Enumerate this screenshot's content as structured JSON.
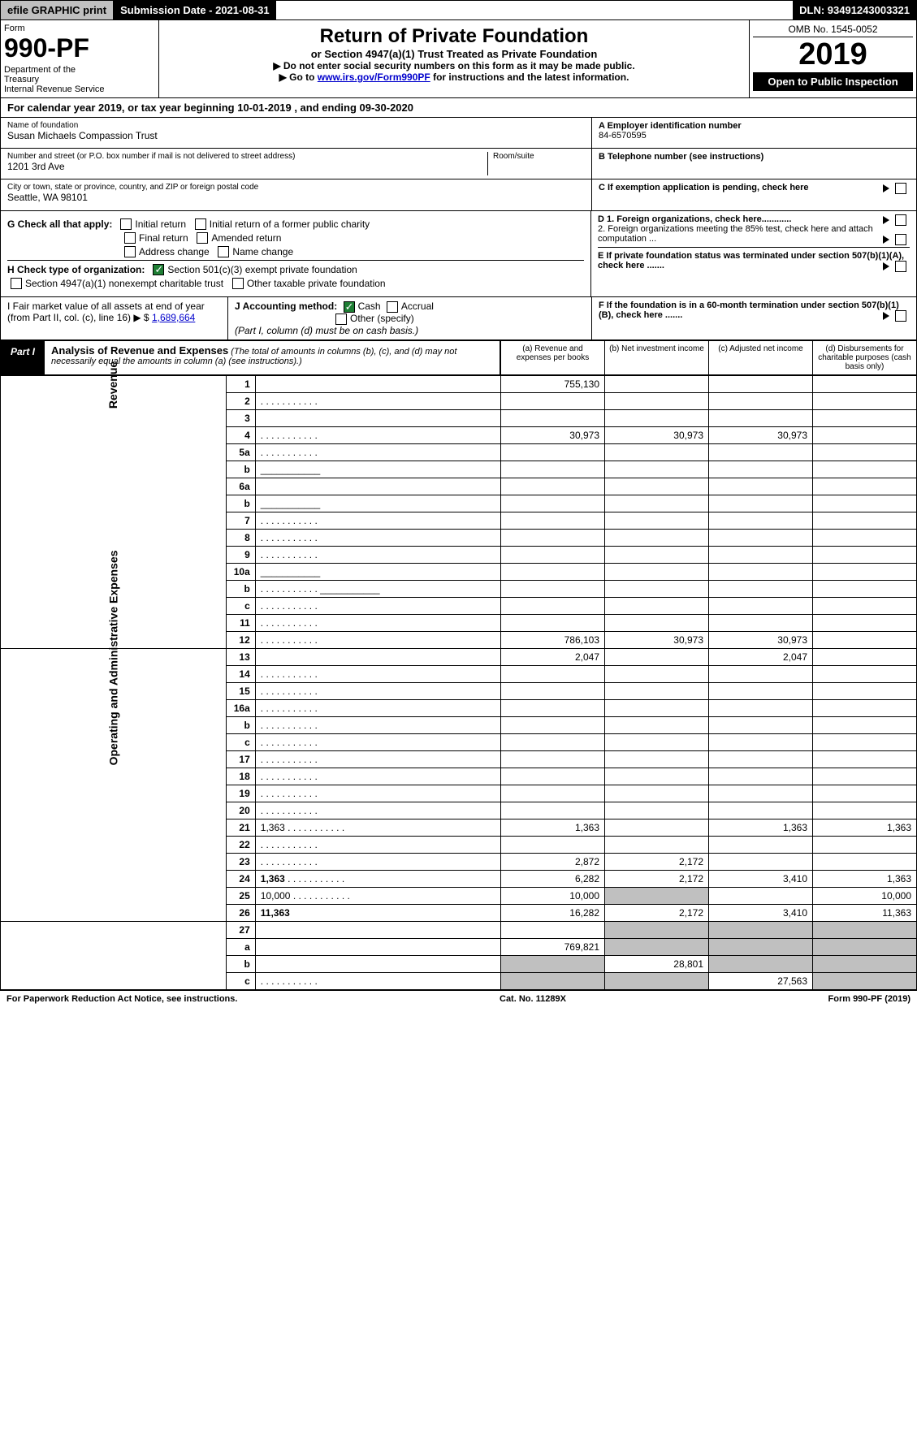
{
  "header": {
    "efile": "efile GRAPHIC print",
    "sub_date_lbl": "Submission Date - 2021-08-31",
    "dln": "DLN: 93491243003321"
  },
  "top": {
    "form_lbl": "Form",
    "form_no": "990-PF",
    "dept": "Department of the Treasury\nInternal Revenue Service",
    "title": "Return of Private Foundation",
    "subtitle": "or Section 4947(a)(1) Trust Treated as Private Foundation",
    "inst1": "▶ Do not enter social security numbers on this form as it may be made public.",
    "inst2_pre": "▶ Go to ",
    "inst2_link": "www.irs.gov/Form990PF",
    "inst2_post": " for instructions and the latest information.",
    "omb": "OMB No. 1545-0052",
    "year": "2019",
    "open": "Open to Public Inspection"
  },
  "cal": "For calendar year 2019, or tax year beginning 10-01-2019               , and ending 09-30-2020",
  "info": {
    "name_lbl": "Name of foundation",
    "name_val": "Susan Michaels Compassion Trust",
    "addr_lbl": "Number and street (or P.O. box number if mail is not delivered to street address)",
    "addr_val": "1201 3rd Ave",
    "room_lbl": "Room/suite",
    "city_lbl": "City or town, state or province, country, and ZIP or foreign postal code",
    "city_val": "Seattle, WA  98101",
    "a_lbl": "A Employer identification number",
    "a_val": "84-6570595",
    "b_lbl": "B Telephone number (see instructions)",
    "c_lbl": "C If exemption application is pending, check here",
    "d1": "D 1. Foreign organizations, check here............",
    "d2": "2. Foreign organizations meeting the 85% test, check here and attach computation ...",
    "e": "E If private foundation status was terminated under section 507(b)(1)(A), check here .......",
    "f": "F If the foundation is in a 60-month termination under section 507(b)(1)(B), check here .......",
    "g": "G Check all that apply:",
    "g_opts": [
      "Initial return",
      "Initial return of a former public charity",
      "Final return",
      "Amended return",
      "Address change",
      "Name change"
    ],
    "h": "H Check type of organization:",
    "h1": "Section 501(c)(3) exempt private foundation",
    "h2": "Section 4947(a)(1) nonexempt charitable trust",
    "h3": "Other taxable private foundation",
    "i": "I Fair market value of all assets at end of year (from Part II, col. (c), line 16) ▶ $",
    "i_val": "1,689,664",
    "j": "J Accounting method:",
    "j_cash": "Cash",
    "j_acc": "Accrual",
    "j_other": "Other (specify)",
    "j_note": "(Part I, column (d) must be on cash basis.)"
  },
  "part1": {
    "tag": "Part I",
    "title": "Analysis of Revenue and Expenses",
    "note": "(The total of amounts in columns (b), (c), and (d) may not necessarily equal the amounts in column (a) (see instructions).)",
    "cols": {
      "a": "(a) Revenue and expenses per books",
      "b": "(b) Net investment income",
      "c": "(c) Adjusted net income",
      "d": "(d) Disbursements for charitable purposes (cash basis only)"
    }
  },
  "sections": {
    "revenue": "Revenue",
    "expenses": "Operating and Administrative Expenses"
  },
  "rows": [
    {
      "n": "1",
      "d": "",
      "a": "755,130",
      "b": "",
      "c": ""
    },
    {
      "n": "2",
      "d": "",
      "a": "",
      "b": "",
      "c": "",
      "dots": true,
      "bold_not": true
    },
    {
      "n": "3",
      "d": "",
      "a": "",
      "b": "",
      "c": ""
    },
    {
      "n": "4",
      "d": "",
      "a": "30,973",
      "b": "30,973",
      "c": "30,973",
      "dots": true
    },
    {
      "n": "5a",
      "d": "",
      "a": "",
      "b": "",
      "c": "",
      "dots": true
    },
    {
      "n": "b",
      "d": "",
      "a": "",
      "b": "",
      "c": "",
      "line": true
    },
    {
      "n": "6a",
      "d": "",
      "a": "",
      "b": "",
      "c": ""
    },
    {
      "n": "b",
      "d": "",
      "a": "",
      "b": "",
      "c": "",
      "line": true
    },
    {
      "n": "7",
      "d": "",
      "a": "",
      "b": "",
      "c": "",
      "dots": true
    },
    {
      "n": "8",
      "d": "",
      "a": "",
      "b": "",
      "c": "",
      "dots": true
    },
    {
      "n": "9",
      "d": "",
      "a": "",
      "b": "",
      "c": "",
      "dots": true
    },
    {
      "n": "10a",
      "d": "",
      "a": "",
      "b": "",
      "c": "",
      "line": true
    },
    {
      "n": "b",
      "d": "",
      "a": "",
      "b": "",
      "c": "",
      "dots": true,
      "line": true
    },
    {
      "n": "c",
      "d": "",
      "a": "",
      "b": "",
      "c": "",
      "dots": true
    },
    {
      "n": "11",
      "d": "",
      "a": "",
      "b": "",
      "c": "",
      "dots": true
    },
    {
      "n": "12",
      "d": "",
      "a": "786,103",
      "b": "30,973",
      "c": "30,973",
      "bold": true,
      "dots": true
    }
  ],
  "rows2": [
    {
      "n": "13",
      "d": "",
      "a": "2,047",
      "b": "",
      "c": "2,047"
    },
    {
      "n": "14",
      "d": "",
      "a": "",
      "b": "",
      "c": "",
      "dots": true
    },
    {
      "n": "15",
      "d": "",
      "a": "",
      "b": "",
      "c": "",
      "dots": true
    },
    {
      "n": "16a",
      "d": "",
      "a": "",
      "b": "",
      "c": "",
      "dots": true
    },
    {
      "n": "b",
      "d": "",
      "a": "",
      "b": "",
      "c": "",
      "dots": true
    },
    {
      "n": "c",
      "d": "",
      "a": "",
      "b": "",
      "c": "",
      "dots": true
    },
    {
      "n": "17",
      "d": "",
      "a": "",
      "b": "",
      "c": "",
      "dots": true
    },
    {
      "n": "18",
      "d": "",
      "a": "",
      "b": "",
      "c": "",
      "dots": true
    },
    {
      "n": "19",
      "d": "",
      "a": "",
      "b": "",
      "c": "",
      "dots": true
    },
    {
      "n": "20",
      "d": "",
      "a": "",
      "b": "",
      "c": "",
      "dots": true
    },
    {
      "n": "21",
      "d": "1,363",
      "a": "1,363",
      "b": "",
      "c": "1,363",
      "dots": true
    },
    {
      "n": "22",
      "d": "",
      "a": "",
      "b": "",
      "c": "",
      "dots": true
    },
    {
      "n": "23",
      "d": "",
      "a": "2,872",
      "b": "2,172",
      "c": "",
      "dots": true
    },
    {
      "n": "24",
      "d": "1,363",
      "a": "6,282",
      "b": "2,172",
      "c": "3,410",
      "bold": true,
      "dots": true
    },
    {
      "n": "25",
      "d": "10,000",
      "a": "10,000",
      "b": "",
      "c": "",
      "dots": true,
      "grayb": true
    },
    {
      "n": "26",
      "d": "11,363",
      "a": "16,282",
      "b": "2,172",
      "c": "3,410",
      "bold": true
    }
  ],
  "rows3": [
    {
      "n": "27",
      "d": "",
      "a": "",
      "b": "",
      "c": "",
      "graybcd": true
    },
    {
      "n": "a",
      "d": "",
      "a": "769,821",
      "b": "",
      "c": "",
      "bold": true,
      "graybcd": true
    },
    {
      "n": "b",
      "d": "",
      "a": "",
      "b": "28,801",
      "c": "",
      "bold": true,
      "grayacd": true
    },
    {
      "n": "c",
      "d": "",
      "a": "",
      "b": "",
      "c": "27,563",
      "bold": true,
      "dots": true,
      "grayabd": true
    }
  ],
  "footer": {
    "left": "For Paperwork Reduction Act Notice, see instructions.",
    "mid": "Cat. No. 11289X",
    "right": "Form 990-PF (2019)"
  }
}
